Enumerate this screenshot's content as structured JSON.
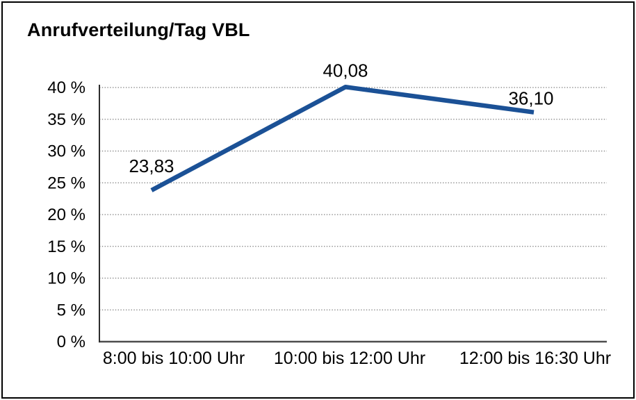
{
  "chart_data": {
    "type": "line",
    "title": "Anrufverteilung/Tag VBL",
    "categories": [
      "8:00 bis 10:00 Uhr",
      "10:00 bis 12:00 Uhr",
      "12:00 bis 16:30 Uhr"
    ],
    "values": [
      23.83,
      40.08,
      36.1
    ],
    "data_labels": [
      "23,83",
      "40,08",
      "36,10"
    ],
    "yticks": [
      0,
      5,
      10,
      15,
      20,
      25,
      30,
      35,
      40
    ],
    "ytick_labels": [
      "0 %",
      "5 %",
      "10 %",
      "15 %",
      "20 %",
      "25 %",
      "30 %",
      "35 %",
      "40 %"
    ],
    "ylim": [
      0,
      40
    ],
    "xlabel": "",
    "ylabel": "",
    "legend": "none",
    "grid": "horizontal-dotted",
    "line_color": "#1B5196",
    "text_color": "#000000",
    "border_color": "#000000"
  }
}
